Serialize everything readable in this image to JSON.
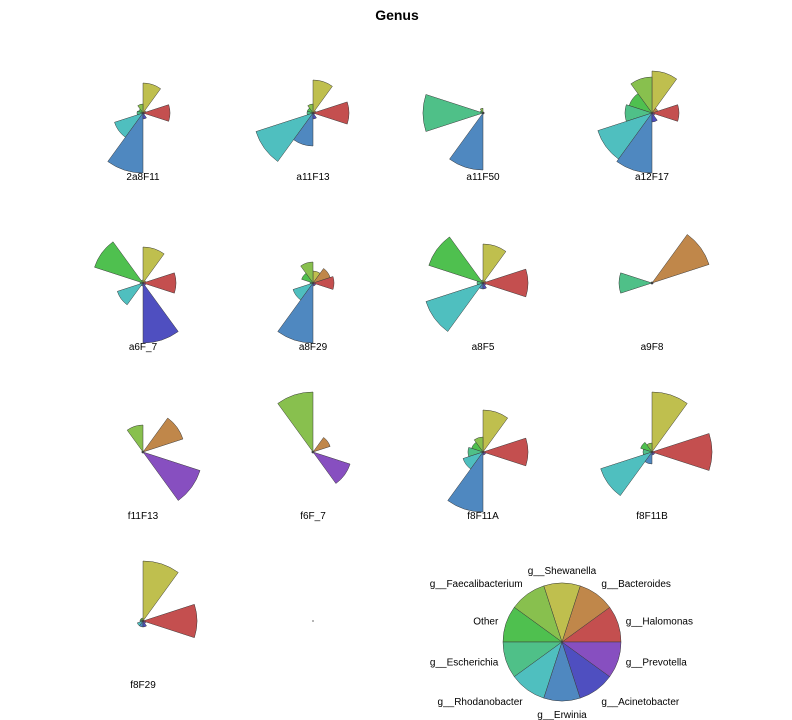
{
  "chart_data": {
    "type": "pie",
    "title": "Genus",
    "genera": [
      {
        "name": "g__Halomonas",
        "color": "#c44f4f"
      },
      {
        "name": "g__Bacteroides",
        "color": "#c0874a"
      },
      {
        "name": "g__Shewanella",
        "color": "#bfbf4e"
      },
      {
        "name": "g__Faecalibacterium",
        "color": "#88c04e"
      },
      {
        "name": "Other",
        "color": "#4fc04f"
      },
      {
        "name": "g__Escherichia",
        "color": "#4fc088"
      },
      {
        "name": "g__Rhodanobacter",
        "color": "#4fbfbf"
      },
      {
        "name": "g__Erwinia",
        "color": "#4f88c0"
      },
      {
        "name": "g__Acinetobacter",
        "color": "#4f4fc0"
      },
      {
        "name": "g__Prevotella",
        "color": "#874fc0"
      }
    ],
    "samples": [
      {
        "name": "2a8F11",
        "values": [
          0.45,
          0.05,
          0.5,
          0.15,
          0.08,
          0.1,
          0.5,
          1.0,
          0.1,
          0.03
        ]
      },
      {
        "name": "a11F13",
        "values": [
          0.6,
          0.05,
          0.55,
          0.15,
          0.1,
          0.1,
          1.0,
          0.55,
          0.1,
          0.03
        ]
      },
      {
        "name": "a11F50",
        "values": [
          0.02,
          0.02,
          0.02,
          0.08,
          0.05,
          1.0,
          0.02,
          0.95,
          0.02,
          0.02
        ]
      },
      {
        "name": "a12F17",
        "values": [
          0.45,
          0.1,
          0.7,
          0.6,
          0.4,
          0.45,
          0.95,
          1.0,
          0.15,
          0.05
        ]
      },
      {
        "name": "a6F_7",
        "values": [
          0.55,
          0.05,
          0.6,
          0.05,
          0.85,
          0.05,
          0.45,
          0.05,
          1.0,
          0.05
        ]
      },
      {
        "name": "a8F29",
        "values": [
          0.35,
          0.3,
          0.2,
          0.35,
          0.2,
          0.05,
          0.35,
          1.0,
          0.05,
          0.05
        ]
      },
      {
        "name": "a8F5",
        "values": [
          0.75,
          0.05,
          0.65,
          0.05,
          0.95,
          0.1,
          1.0,
          0.1,
          0.1,
          0.05
        ]
      },
      {
        "name": "a9F8",
        "values": [
          0.02,
          1.0,
          0.02,
          0.02,
          0.02,
          0.55,
          0.02,
          0.02,
          0.02,
          0.02
        ]
      },
      {
        "name": "f11F13",
        "values": [
          0.02,
          0.7,
          0.02,
          0.45,
          0.02,
          0.02,
          0.02,
          0.02,
          0.02,
          1.0
        ]
      },
      {
        "name": "f6F_7",
        "values": [
          0.02,
          0.3,
          0.02,
          1.0,
          0.02,
          0.02,
          0.02,
          0.02,
          0.02,
          0.65
        ]
      },
      {
        "name": "f8F11A",
        "values": [
          0.75,
          0.02,
          0.7,
          0.25,
          0.2,
          0.25,
          0.35,
          1.0,
          0.05,
          0.05
        ]
      },
      {
        "name": "f8F11B",
        "values": [
          1.0,
          0.02,
          1.0,
          0.15,
          0.2,
          0.15,
          0.9,
          0.2,
          0.05,
          0.05
        ]
      },
      {
        "name": "f8F29",
        "values": [
          0.9,
          0.02,
          1.0,
          0.05,
          0.05,
          0.05,
          0.1,
          0.1,
          0.1,
          0.05
        ]
      }
    ],
    "key_labels": [
      "g__Halomonas",
      "g__Bacteroides",
      "g__Shewanella",
      "g__Faecalibacterium",
      "Other",
      "g__Escherichia",
      "g__Rhodanobacter",
      "g__Erwinia",
      "g__Acinetobacter",
      "g__Prevotella"
    ]
  }
}
